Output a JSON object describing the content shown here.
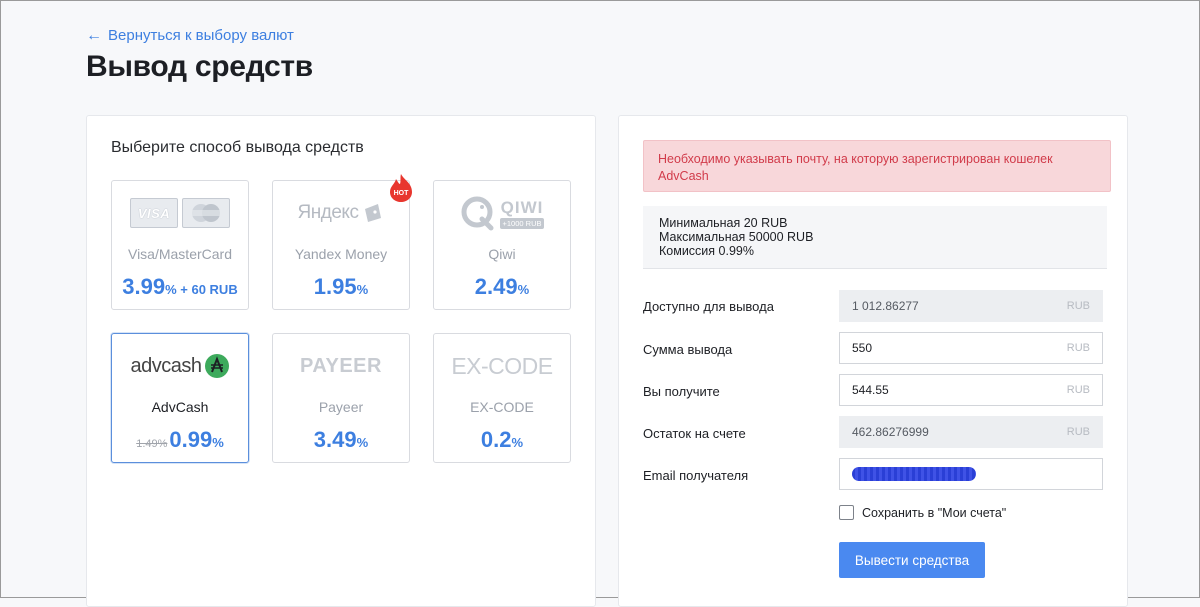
{
  "nav": {
    "back_arrow": "←",
    "back_label": "Вернуться к выбору валют"
  },
  "page_title": "Вывод средств",
  "methods_panel": {
    "heading": "Выберите способ вывода средств",
    "methods": [
      {
        "id": "visa",
        "name": "Visa/MasterCard",
        "fee_value": "3.99",
        "fee_unit": "%",
        "fee_extra": " + 60 RUB",
        "logo_text": "VISA",
        "active": false
      },
      {
        "id": "yandex",
        "name": "Yandex Money",
        "fee_value": "1.95",
        "fee_unit": "%",
        "logo_text": "Яндекс",
        "badge": "HOT",
        "active": false
      },
      {
        "id": "qiwi",
        "name": "Qiwi",
        "fee_value": "2.49",
        "fee_unit": "%",
        "logo_text": "QIWI",
        "logo_sub": "+1000 RUB",
        "active": false
      },
      {
        "id": "advcash",
        "name": "AdvCash",
        "fee_value": "0.99",
        "fee_unit": "%",
        "fee_old": "1.49%",
        "logo_text": "advcash",
        "active": true
      },
      {
        "id": "payeer",
        "name": "Payeer",
        "fee_value": "3.49",
        "fee_unit": "%",
        "logo_text": "PAYEER",
        "active": false
      },
      {
        "id": "excode",
        "name": "EX-CODE",
        "fee_value": "0.2",
        "fee_unit": "%",
        "logo_text": "EX-CODE",
        "active": false
      }
    ]
  },
  "form": {
    "alert": "Необходимо указывать почту, на которую зарегистрирован кошелек AdvCash",
    "limits": {
      "min": "Минимальная 20 RUB",
      "max": "Максимальная 50000 RUB",
      "commission": "Комиссия 0.99%"
    },
    "rows": [
      {
        "id": "available",
        "label": "Доступно для вывода",
        "value": "1 012.86277",
        "currency": "RUB",
        "readonly": true
      },
      {
        "id": "amount",
        "label": "Сумма вывода",
        "value": "550",
        "currency": "RUB",
        "readonly": false
      },
      {
        "id": "receive",
        "label": "Вы получите",
        "value": "544.55",
        "currency": "RUB",
        "readonly": false
      },
      {
        "id": "balance",
        "label": "Остаток на счете",
        "value": "462.86276999",
        "currency": "RUB",
        "readonly": true
      }
    ],
    "email_label": "Email получателя",
    "save_label": "Сохранить в \"Мои счета\"",
    "submit_label": "Вывести средства"
  },
  "colors": {
    "accent": "#4a89f0",
    "link": "#3d7fe0",
    "alert_text": "#d13b4a",
    "alert_bg": "#f8d7da",
    "advcash_green": "#3daa5c",
    "hot_red": "#e8362e"
  }
}
